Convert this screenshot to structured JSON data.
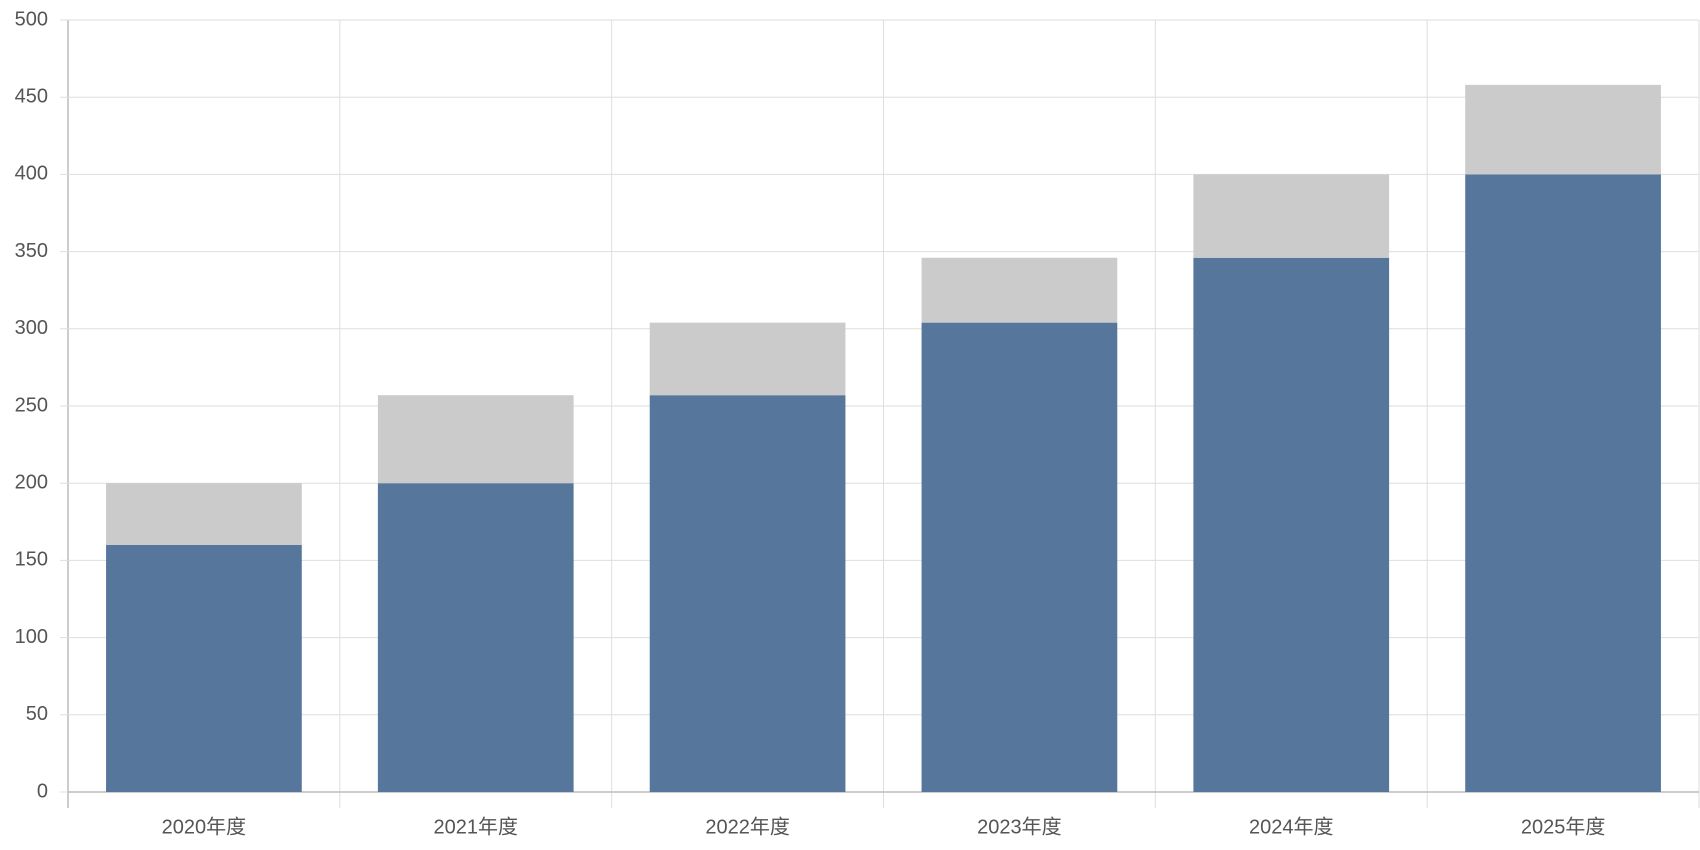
{
  "chart_data": {
    "type": "stacked_bar",
    "categories": [
      "2020年度",
      "2021年度",
      "2022年度",
      "2023年度",
      "2024年度",
      "2025年度"
    ],
    "series": [
      {
        "color": "#56769b",
        "values": [
          160,
          200,
          257,
          304,
          346,
          400
        ]
      },
      {
        "color": "#cbcbcb",
        "values": [
          40,
          57,
          47,
          42,
          54,
          58
        ]
      }
    ],
    "ylim": [
      0,
      500
    ],
    "yticks": [
      0,
      50,
      100,
      150,
      200,
      250,
      300,
      350,
      400,
      450,
      500
    ],
    "grid": true
  }
}
